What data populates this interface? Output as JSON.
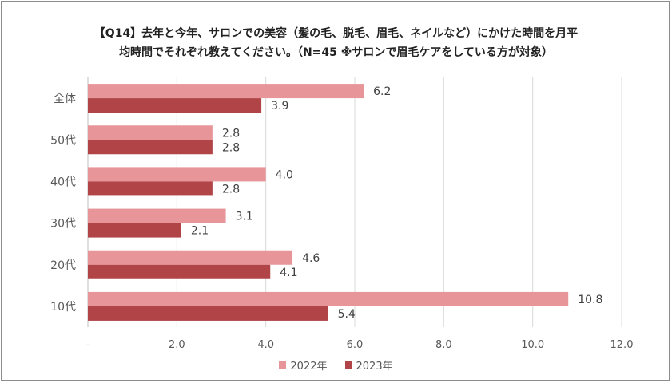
{
  "title": {
    "line1": "【Q14】去年と今年、サロンでの美容（髪の毛、脱毛、眉毛、ネイルなど）にかけた時間を月平",
    "line2": "均時間でそれぞれ教えてください。（N=45  ※サロンで眉毛ケアをしている方が対象）"
  },
  "chart_data": {
    "type": "bar",
    "orientation": "horizontal",
    "categories": [
      "全体",
      "50代",
      "40代",
      "30代",
      "20代",
      "10代"
    ],
    "series": [
      {
        "name": "2022年",
        "color": "#e8959a",
        "values": [
          6.2,
          2.8,
          4.0,
          3.1,
          4.6,
          10.8
        ]
      },
      {
        "name": "2023年",
        "color": "#b04447",
        "values": [
          3.9,
          2.8,
          2.8,
          2.1,
          4.1,
          5.4
        ]
      }
    ],
    "value_labels": [
      [
        "6.2",
        "2.8",
        "4.0",
        "3.1",
        "4.6",
        "10.8"
      ],
      [
        "3.9",
        "2.8",
        "2.8",
        "2.1",
        "4.1",
        "5.4"
      ]
    ],
    "xlim": [
      0,
      12
    ],
    "xticks": [
      0,
      2,
      4,
      6,
      8,
      10,
      12
    ],
    "xtick_labels": [
      "-",
      "2.0",
      "4.0",
      "6.0",
      "8.0",
      "10.0",
      "12.0"
    ],
    "grid": true,
    "legend_position": "bottom"
  }
}
